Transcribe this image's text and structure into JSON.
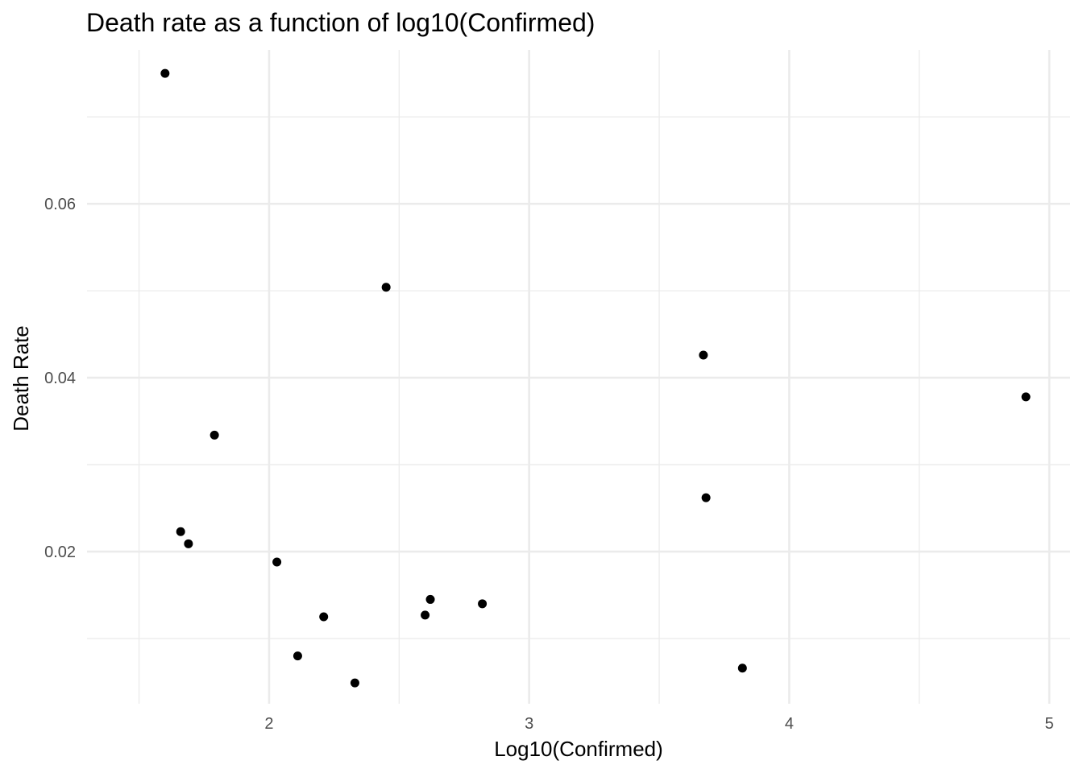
{
  "chart_data": {
    "type": "scatter",
    "title": "Death rate as a function of log10(Confirmed)",
    "xlabel": "Log10(Confirmed)",
    "ylabel": "Death Rate",
    "xlim": [
      1.3,
      5.08
    ],
    "ylim": [
      0.0025,
      0.0777
    ],
    "x_ticks": [
      2,
      3,
      4,
      5
    ],
    "x_tick_labels": [
      "2",
      "3",
      "4",
      "5"
    ],
    "x_minor_ticks": [
      1.5,
      2.5,
      3.5,
      4.5
    ],
    "y_ticks": [
      0.02,
      0.04,
      0.06
    ],
    "y_tick_labels": [
      "0.02",
      "0.04",
      "0.06"
    ],
    "y_minor_ticks": [
      0.01,
      0.03,
      0.05,
      0.07
    ],
    "grid": true,
    "point_color": "#000000",
    "points": [
      {
        "x": 1.6,
        "y": 0.075
      },
      {
        "x": 1.66,
        "y": 0.0223
      },
      {
        "x": 1.69,
        "y": 0.0209
      },
      {
        "x": 1.79,
        "y": 0.0334
      },
      {
        "x": 2.03,
        "y": 0.0188
      },
      {
        "x": 2.11,
        "y": 0.008
      },
      {
        "x": 2.21,
        "y": 0.0125
      },
      {
        "x": 2.33,
        "y": 0.0049
      },
      {
        "x": 2.45,
        "y": 0.0504
      },
      {
        "x": 2.6,
        "y": 0.0127
      },
      {
        "x": 2.62,
        "y": 0.0145
      },
      {
        "x": 2.82,
        "y": 0.014
      },
      {
        "x": 3.67,
        "y": 0.0426
      },
      {
        "x": 3.68,
        "y": 0.0262
      },
      {
        "x": 3.82,
        "y": 0.0066
      },
      {
        "x": 4.91,
        "y": 0.0378
      }
    ]
  }
}
